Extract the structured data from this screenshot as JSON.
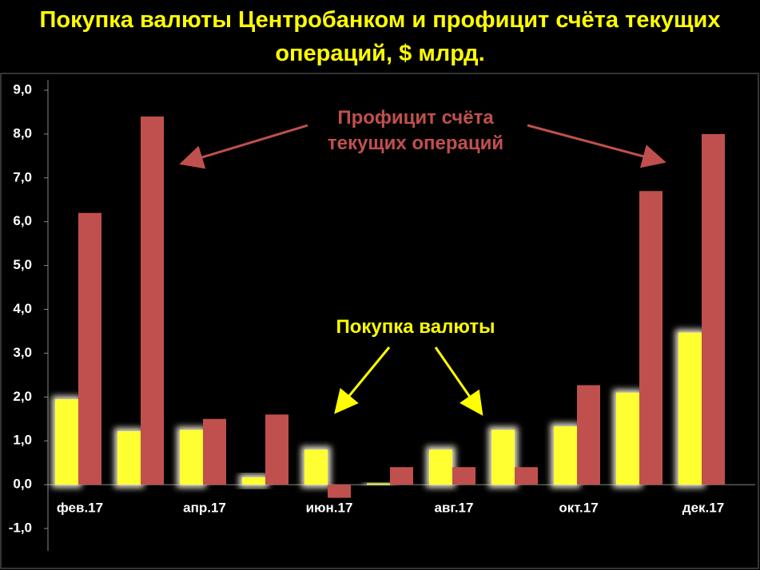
{
  "chart_data": {
    "type": "bar",
    "title": "Покупка валюты Центробанком и профицит счёта текущих операций, $ млрд.",
    "categories": [
      "фев.17",
      null,
      "апр.17",
      null,
      "июн.17",
      null,
      "авг.17",
      null,
      "окт.17",
      null,
      "дек.17"
    ],
    "series": [
      {
        "name": "Покупка валюты",
        "color": "#ffff33",
        "values": [
          1.95,
          1.22,
          1.25,
          0.17,
          0.8,
          0.03,
          0.8,
          1.25,
          1.33,
          2.1,
          3.47
        ]
      },
      {
        "name": "Профицит счёта текущих операций",
        "color": "#c0504d",
        "values": [
          6.2,
          8.4,
          1.5,
          1.6,
          -0.3,
          0.4,
          0.4,
          0.4,
          2.27,
          6.7,
          8.0
        ]
      }
    ],
    "ylim": [
      -1,
      9
    ],
    "yticks": [
      {
        "value": -1,
        "label": "-1,0"
      },
      {
        "value": 0,
        "label": "0,0"
      },
      {
        "value": 1,
        "label": "1,0"
      },
      {
        "value": 2,
        "label": "2,0"
      },
      {
        "value": 3,
        "label": "3,0"
      },
      {
        "value": 4,
        "label": "4,0"
      },
      {
        "value": 5,
        "label": "5,0"
      },
      {
        "value": 6,
        "label": "6,0"
      },
      {
        "value": 7,
        "label": "7,0"
      },
      {
        "value": 8,
        "label": "8,0"
      },
      {
        "value": 9,
        "label": "9,0"
      }
    ]
  }
}
